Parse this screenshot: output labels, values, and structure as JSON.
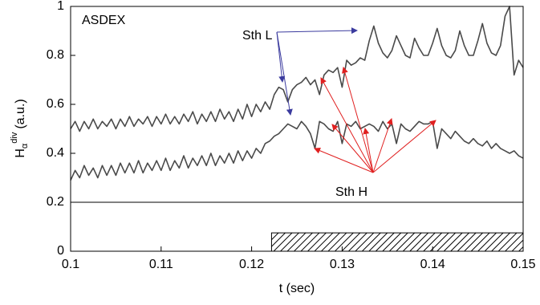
{
  "chart_data": {
    "type": "line",
    "ylabel": {
      "main": "H",
      "sub": "α",
      "sup": "div",
      "unit": "(a.u.)"
    },
    "xlabel": "t (sec)",
    "annotations": [
      {
        "text": "ASDEX",
        "color": "#000000"
      },
      {
        "text": "Sth L",
        "color": "#3b3b9e"
      },
      {
        "text": "Sth H",
        "color": "#e02020"
      }
    ],
    "x": [
      0.1,
      0.1005,
      0.101,
      0.1015,
      0.102,
      0.1025,
      0.103,
      0.1035,
      0.104,
      0.1045,
      0.105,
      0.1055,
      0.106,
      0.1065,
      0.107,
      0.1075,
      0.108,
      0.1085,
      0.109,
      0.1095,
      0.11,
      0.1105,
      0.111,
      0.1115,
      0.112,
      0.1125,
      0.113,
      0.1135,
      0.114,
      0.1145,
      0.115,
      0.1155,
      0.116,
      0.1165,
      0.117,
      0.1175,
      0.118,
      0.1185,
      0.119,
      0.1195,
      0.12,
      0.1205,
      0.121,
      0.1215,
      0.122,
      0.1225,
      0.123,
      0.1235,
      0.124,
      0.1245,
      0.125,
      0.1255,
      0.126,
      0.1265,
      0.127,
      0.1275,
      0.128,
      0.1285,
      0.129,
      0.1295,
      0.13,
      0.1305,
      0.131,
      0.1315,
      0.132,
      0.1325,
      0.133,
      0.1335,
      0.134,
      0.1345,
      0.135,
      0.1355,
      0.136,
      0.1365,
      0.137,
      0.1375,
      0.138,
      0.1385,
      0.139,
      0.1395,
      0.14,
      0.1405,
      0.141,
      0.1415,
      0.142,
      0.1425,
      0.143,
      0.1435,
      0.144,
      0.1445,
      0.145,
      0.1455,
      0.146,
      0.1465,
      0.147,
      0.1475,
      0.148,
      0.1485,
      0.149,
      0.1495,
      0.15
    ],
    "series": [
      {
        "color": "#4a4a4a",
        "values": [
          0.5,
          0.53,
          0.49,
          0.53,
          0.5,
          0.54,
          0.5,
          0.53,
          0.51,
          0.54,
          0.5,
          0.54,
          0.51,
          0.55,
          0.51,
          0.54,
          0.52,
          0.55,
          0.51,
          0.55,
          0.52,
          0.56,
          0.52,
          0.55,
          0.52,
          0.56,
          0.53,
          0.57,
          0.52,
          0.56,
          0.53,
          0.57,
          0.53,
          0.58,
          0.54,
          0.57,
          0.53,
          0.58,
          0.54,
          0.6,
          0.55,
          0.6,
          0.57,
          0.61,
          0.58,
          0.64,
          0.67,
          0.66,
          0.61,
          0.66,
          0.68,
          0.69,
          0.71,
          0.68,
          0.7,
          0.64,
          0.72,
          0.74,
          0.73,
          0.75,
          0.67,
          0.78,
          0.76,
          0.77,
          0.79,
          0.78,
          0.86,
          0.92,
          0.85,
          0.81,
          0.79,
          0.82,
          0.88,
          0.84,
          0.8,
          0.79,
          0.87,
          0.83,
          0.8,
          0.8,
          0.85,
          0.91,
          0.84,
          0.8,
          0.79,
          0.82,
          0.9,
          0.84,
          0.8,
          0.8,
          0.86,
          0.93,
          0.85,
          0.81,
          0.8,
          0.84,
          0.96,
          1.0,
          0.72,
          0.78,
          0.75
        ]
      },
      {
        "color": "#4a4a4a",
        "values": [
          0.29,
          0.33,
          0.3,
          0.35,
          0.31,
          0.34,
          0.3,
          0.35,
          0.31,
          0.35,
          0.31,
          0.36,
          0.32,
          0.36,
          0.32,
          0.37,
          0.32,
          0.36,
          0.33,
          0.37,
          0.33,
          0.38,
          0.33,
          0.37,
          0.34,
          0.39,
          0.34,
          0.38,
          0.35,
          0.39,
          0.35,
          0.4,
          0.35,
          0.39,
          0.36,
          0.4,
          0.36,
          0.41,
          0.37,
          0.41,
          0.38,
          0.42,
          0.4,
          0.44,
          0.45,
          0.47,
          0.48,
          0.5,
          0.52,
          0.51,
          0.5,
          0.53,
          0.51,
          0.48,
          0.42,
          0.53,
          0.52,
          0.5,
          0.49,
          0.53,
          0.44,
          0.52,
          0.51,
          0.53,
          0.5,
          0.51,
          0.52,
          0.51,
          0.49,
          0.53,
          0.5,
          0.52,
          0.44,
          0.52,
          0.5,
          0.49,
          0.51,
          0.53,
          0.52,
          0.52,
          0.53,
          0.42,
          0.5,
          0.48,
          0.46,
          0.49,
          0.47,
          0.45,
          0.44,
          0.46,
          0.44,
          0.43,
          0.45,
          0.42,
          0.44,
          0.42,
          0.41,
          0.4,
          0.41,
          0.39,
          0.38
        ]
      }
    ],
    "hline": 0.2,
    "shaded_band": {
      "x": [
        0.1222,
        0.15
      ],
      "y": [
        0,
        0.075
      ]
    },
    "xlim": [
      0.1,
      0.15
    ],
    "xticks": [
      0.1,
      0.11,
      0.12,
      0.13,
      0.14,
      0.15
    ],
    "ylim": [
      0,
      1
    ],
    "yticks": [
      0,
      0.2,
      0.4,
      0.6,
      0.8,
      1
    ]
  }
}
